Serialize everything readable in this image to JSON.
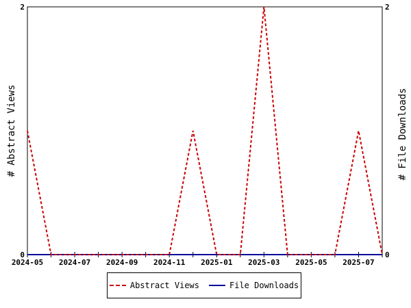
{
  "chart_data": {
    "type": "line",
    "x": [
      "2024-05",
      "2024-06",
      "2024-07",
      "2024-08",
      "2024-09",
      "2024-10",
      "2024-11",
      "2024-12",
      "2025-01",
      "2025-02",
      "2025-03",
      "2025-04",
      "2025-05",
      "2025-06",
      "2025-07",
      "2025-08"
    ],
    "series": [
      {
        "name": "Abstract Views",
        "values": [
          1,
          0,
          0,
          0,
          0,
          0,
          0,
          1,
          0,
          0,
          2,
          0,
          0,
          0,
          1,
          0
        ],
        "color": "#cc0000",
        "axis": "left",
        "style": "dashed"
      },
      {
        "name": "File Downloads",
        "values": [
          0,
          0,
          0,
          0,
          0,
          0,
          0,
          0,
          0,
          0,
          0,
          0,
          0,
          0,
          0,
          0
        ],
        "color": "#000099",
        "axis": "right",
        "style": "solid"
      }
    ],
    "xtick_labels": [
      "2024-05",
      "2024-07",
      "2024-09",
      "2024-11",
      "2025-01",
      "2025-03",
      "2025-05",
      "2025-07"
    ],
    "ylabel_left": "# Abstract Views",
    "ylabel_right": "# File Downloads",
    "ylim_left": [
      0,
      2
    ],
    "ylim_right": [
      0,
      2
    ],
    "ytick_labels_left": [
      "0",
      "2"
    ],
    "ytick_labels_right": [
      "0",
      "2"
    ],
    "grid": false,
    "legend_position": "bottom"
  }
}
